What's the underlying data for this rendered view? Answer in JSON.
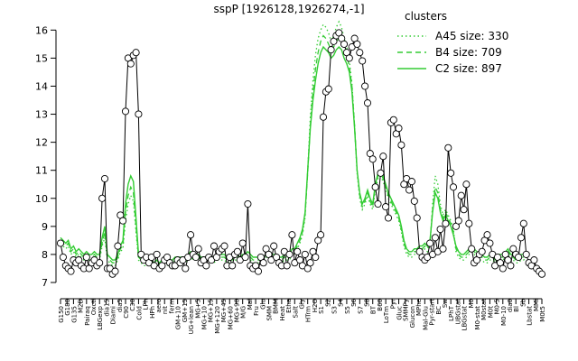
{
  "chart_data": {
    "type": "line",
    "title": "sspP [1926128,1926274,-1]",
    "xlabel": "",
    "ylabel": "",
    "ylim": [
      7,
      16.3
    ],
    "y_ticks": [
      7,
      8,
      9,
      10,
      11,
      12,
      13,
      14,
      15,
      16
    ],
    "x_tick_labels": [
      "G150",
      "G180",
      "G135",
      "M2D",
      "Pairaq",
      "Oxctl",
      "LBGexp",
      "dia15",
      "Diami",
      "dia5",
      "C90",
      "C30",
      "Cold",
      "LPh",
      "HPh",
      "aero",
      "nit",
      "ferm",
      "GM+10",
      "GM+15",
      "UG+lean",
      "MG+5",
      "MG+10",
      "MG+15",
      "MG+120",
      "MG+45",
      "MG+60",
      "MG+90",
      "M/G",
      "Mal",
      "Fru",
      "Glu",
      "SMM",
      "BMM",
      "Heat",
      "Etha",
      "Salt",
      "Gly",
      "HTrm",
      "H2O",
      "S1",
      "S2",
      "S3",
      "S4",
      "S5",
      "S6",
      "S7",
      "S8",
      "BT",
      "B60",
      "LoTm",
      "Pyr",
      "Gluc",
      "SMMPy",
      "Glucon",
      "MPhe",
      "Mal-Glu",
      "Pyr-start",
      "BC",
      "Sw",
      "LPhT",
      "UBGstat",
      "LBGstat",
      "M0",
      "M0-stat",
      "M0stat",
      "M0t",
      "M0-5",
      "M0-10",
      "dia0",
      "Bl",
      "Sb",
      "Lbstat",
      "MMi",
      "M0t5"
    ],
    "legend": {
      "title": "clusters",
      "position": "top-right",
      "entries": [
        {
          "label": "A45 size: 330",
          "style": "dotted"
        },
        {
          "label": "B4 size: 709",
          "style": "dashed"
        },
        {
          "label": "C2 size: 897",
          "style": "solid"
        }
      ]
    },
    "colors": {
      "points": "#000000",
      "cluster": "#33cc33",
      "axis": "#000000"
    },
    "series": [
      {
        "name": "sspP",
        "style": "black-line-open-circles",
        "values": [
          8.4,
          7.9,
          7.6,
          7.5,
          7.4,
          7.8,
          7.7,
          7.8,
          7.6,
          7.5,
          7.9,
          7.5,
          7.7,
          7.8,
          7.6,
          7.7,
          10.0,
          10.7,
          7.5,
          7.5,
          7.3,
          7.4,
          8.3,
          9.4,
          9.2,
          13.1,
          15.0,
          14.8,
          15.1,
          15.2,
          13.0,
          8.0,
          7.8,
          7.9,
          7.7,
          7.9,
          7.6,
          8.0,
          7.5,
          7.6,
          7.8,
          7.9,
          7.7,
          7.6,
          7.6,
          7.8,
          7.7,
          7.8,
          7.5,
          7.9,
          8.7,
          8.0,
          7.9,
          8.2,
          7.7,
          7.8,
          7.6,
          7.9,
          7.8,
          8.3,
          7.9,
          8.1,
          8.2,
          8.3,
          7.6,
          7.9,
          7.6,
          8.0,
          8.1,
          7.8,
          8.4,
          7.9,
          9.8,
          7.6,
          7.5,
          7.6,
          7.4,
          7.9,
          7.7,
          8.2,
          8.0,
          7.8,
          8.3,
          7.9,
          7.7,
          7.6,
          8.1,
          7.6,
          8.0,
          8.7,
          7.7,
          8.1,
          7.8,
          7.6,
          8.0,
          7.5,
          7.7,
          8.1,
          7.9,
          8.5,
          8.7,
          12.9,
          13.8,
          13.9,
          15.3,
          15.6,
          15.8,
          15.9,
          15.7,
          15.5,
          15.2,
          15.0,
          15.4,
          15.7,
          15.5,
          15.2,
          14.9,
          14.0,
          13.4,
          11.6,
          11.4,
          10.4,
          9.8,
          10.9,
          11.5,
          9.7,
          9.3,
          12.7,
          12.8,
          12.3,
          12.5,
          11.9,
          10.5,
          10.7,
          10.3,
          10.6,
          9.9,
          9.3,
          8.1,
          7.9,
          7.8,
          7.9,
          8.4,
          8.0,
          8.6,
          8.1,
          8.9,
          8.2,
          9.1,
          11.8,
          10.9,
          10.4,
          9.0,
          9.2,
          10.1,
          9.6,
          10.5,
          9.1,
          8.2,
          7.7,
          7.8,
          8.0,
          8.1,
          8.5,
          8.7,
          8.4,
          8.0,
          7.6,
          7.9,
          7.7,
          7.5,
          8.0,
          7.8,
          7.6,
          8.2,
          8.0,
          7.9,
          8.6,
          9.1,
          8.0,
          7.7,
          7.6,
          7.8,
          7.5,
          7.4,
          7.3
        ]
      },
      {
        "name": "C2 size: 897",
        "style": "green-solid",
        "values": [
          8.6,
          8.5,
          8.4,
          8.5,
          8.2,
          8.3,
          8.1,
          8.2,
          8.1,
          8.0,
          8.1,
          8.0,
          8.0,
          8.1,
          8.0,
          8.0,
          8.6,
          9.0,
          8.0,
          7.9,
          7.8,
          7.8,
          8.0,
          8.3,
          8.5,
          9.8,
          10.5,
          10.8,
          10.6,
          9.3,
          8.0,
          7.9,
          7.8,
          7.8,
          7.8,
          7.8,
          7.7,
          7.8,
          7.7,
          7.8,
          7.8,
          7.8,
          7.8,
          7.8,
          7.9,
          7.9,
          7.9,
          7.9,
          7.9,
          8.0,
          8.1,
          8.0,
          8.0,
          8.0,
          7.9,
          7.9,
          7.9,
          7.9,
          7.9,
          7.9,
          8.0,
          8.0,
          8.0,
          8.0,
          7.9,
          7.9,
          7.9,
          8.0,
          8.0,
          7.9,
          8.0,
          8.0,
          8.1,
          8.0,
          7.9,
          7.9,
          7.9,
          7.9,
          7.9,
          8.0,
          8.0,
          8.0,
          8.0,
          8.0,
          7.9,
          7.9,
          8.0,
          8.0,
          8.0,
          8.2,
          8.2,
          8.4,
          8.6,
          8.9,
          9.5,
          11.0,
          12.5,
          13.5,
          14.2,
          14.8,
          15.2,
          15.4,
          15.3,
          15.2,
          15.0,
          15.1,
          15.3,
          15.4,
          15.3,
          15.0,
          14.8,
          14.5,
          13.8,
          12.5,
          11.0,
          10.2,
          9.8,
          10.0,
          10.3,
          10.0,
          9.8,
          10.5,
          10.9,
          11.0,
          10.8,
          10.5,
          10.2,
          10.0,
          9.8,
          9.6,
          9.4,
          9.0,
          8.5,
          8.2,
          8.1,
          8.1,
          8.2,
          8.2,
          8.3,
          8.3,
          8.4,
          8.3,
          8.5,
          9.5,
          10.2,
          10.0,
          9.5,
          9.2,
          9.4,
          9.2,
          9.0,
          8.7,
          8.3,
          8.1,
          8.0,
          8.0,
          8.1,
          8.2,
          8.3,
          8.2,
          8.1,
          8.0,
          8.0,
          7.9,
          7.9,
          8.0,
          8.0,
          7.9,
          8.0,
          8.0,
          8.0,
          8.1,
          8.2,
          8.0,
          8.0,
          7.9,
          7.9,
          8.0,
          8.0,
          8.1
        ]
      },
      {
        "name": "B4 size: 709",
        "style": "green-dashed",
        "values": [
          8.5,
          8.4,
          8.3,
          8.4,
          8.1,
          8.2,
          8.0,
          8.1,
          8.0,
          7.9,
          8.0,
          7.9,
          7.9,
          8.0,
          7.9,
          7.9,
          8.4,
          8.8,
          7.9,
          7.8,
          7.7,
          7.7,
          7.9,
          8.2,
          8.3,
          9.5,
          10.1,
          10.4,
          10.2,
          9.0,
          7.9,
          7.8,
          7.7,
          7.7,
          7.7,
          7.7,
          7.6,
          7.7,
          7.6,
          7.7,
          7.7,
          7.7,
          7.7,
          7.7,
          7.8,
          7.8,
          7.8,
          7.8,
          7.8,
          7.9,
          8.0,
          7.9,
          7.9,
          7.9,
          7.8,
          7.8,
          7.8,
          7.8,
          7.8,
          7.8,
          7.9,
          7.9,
          7.9,
          7.9,
          7.8,
          7.8,
          7.8,
          7.9,
          7.9,
          7.8,
          7.9,
          7.9,
          8.0,
          7.9,
          7.8,
          7.8,
          7.8,
          7.8,
          7.8,
          7.9,
          7.9,
          7.9,
          7.9,
          7.9,
          7.8,
          7.8,
          7.9,
          7.9,
          7.9,
          8.1,
          8.1,
          8.3,
          8.5,
          8.8,
          9.4,
          10.9,
          12.6,
          13.8,
          14.6,
          15.2,
          15.6,
          15.8,
          15.7,
          15.5,
          15.3,
          15.4,
          15.6,
          15.7,
          15.6,
          15.3,
          15.1,
          14.7,
          14.0,
          12.6,
          11.0,
          10.1,
          9.7,
          9.9,
          10.2,
          9.9,
          9.7,
          10.4,
          10.8,
          10.9,
          10.7,
          10.4,
          10.1,
          9.9,
          9.7,
          9.5,
          9.3,
          8.9,
          8.4,
          8.1,
          8.0,
          8.0,
          8.1,
          8.1,
          8.2,
          8.2,
          8.3,
          8.2,
          8.4,
          9.6,
          10.4,
          10.2,
          9.6,
          9.3,
          9.5,
          9.3,
          9.1,
          8.8,
          8.2,
          8.0,
          7.9,
          7.9,
          8.0,
          8.1,
          8.2,
          8.1,
          8.0,
          7.9,
          7.9,
          7.8,
          7.8,
          7.9,
          7.9,
          7.8,
          7.9,
          7.9,
          7.9,
          8.0,
          8.1,
          7.9,
          7.9,
          7.8,
          7.8,
          7.9,
          7.9,
          8.0
        ]
      },
      {
        "name": "A45 size: 330",
        "style": "green-dotted",
        "values": [
          8.4,
          8.3,
          8.2,
          8.3,
          8.0,
          8.1,
          7.9,
          8.0,
          7.9,
          7.8,
          7.9,
          7.8,
          7.8,
          7.9,
          7.8,
          7.8,
          8.3,
          8.6,
          7.8,
          7.7,
          7.6,
          7.6,
          7.8,
          8.1,
          8.2,
          9.2,
          9.8,
          10.1,
          9.9,
          8.8,
          7.8,
          7.7,
          7.6,
          7.6,
          7.6,
          7.6,
          7.5,
          7.6,
          7.5,
          7.6,
          7.6,
          7.6,
          7.6,
          7.6,
          7.7,
          7.7,
          7.7,
          7.7,
          7.7,
          7.8,
          7.9,
          7.8,
          7.8,
          7.8,
          7.7,
          7.7,
          7.7,
          7.7,
          7.7,
          7.7,
          7.8,
          7.8,
          7.8,
          7.8,
          7.7,
          7.7,
          7.7,
          7.8,
          7.8,
          7.7,
          7.8,
          7.8,
          7.9,
          7.8,
          7.7,
          7.7,
          7.7,
          7.7,
          7.7,
          7.8,
          7.8,
          7.8,
          7.8,
          7.8,
          7.7,
          7.7,
          7.8,
          7.8,
          7.8,
          8.0,
          8.0,
          8.2,
          8.4,
          8.7,
          9.3,
          11.0,
          12.9,
          14.2,
          15.1,
          15.7,
          16.0,
          16.2,
          16.1,
          15.9,
          15.6,
          15.8,
          16.1,
          16.3,
          16.1,
          15.7,
          15.4,
          14.9,
          14.1,
          12.6,
          10.9,
          10.0,
          9.6,
          9.8,
          10.1,
          9.8,
          9.6,
          10.3,
          10.7,
          10.8,
          10.6,
          10.3,
          10.0,
          9.8,
          9.6,
          9.4,
          9.2,
          8.8,
          8.3,
          8.0,
          7.9,
          7.9,
          8.0,
          8.0,
          8.1,
          8.1,
          8.2,
          8.1,
          8.3,
          9.8,
          10.8,
          10.5,
          9.8,
          9.4,
          9.6,
          9.4,
          9.2,
          8.9,
          8.1,
          7.9,
          7.8,
          7.8,
          7.9,
          8.0,
          8.1,
          8.0,
          7.9,
          7.8,
          7.8,
          7.7,
          7.7,
          7.8,
          7.8,
          7.7,
          7.8,
          7.8,
          7.8,
          7.9,
          8.0,
          7.8,
          7.8,
          7.7,
          7.7,
          7.8,
          7.8,
          7.9
        ]
      }
    ]
  }
}
